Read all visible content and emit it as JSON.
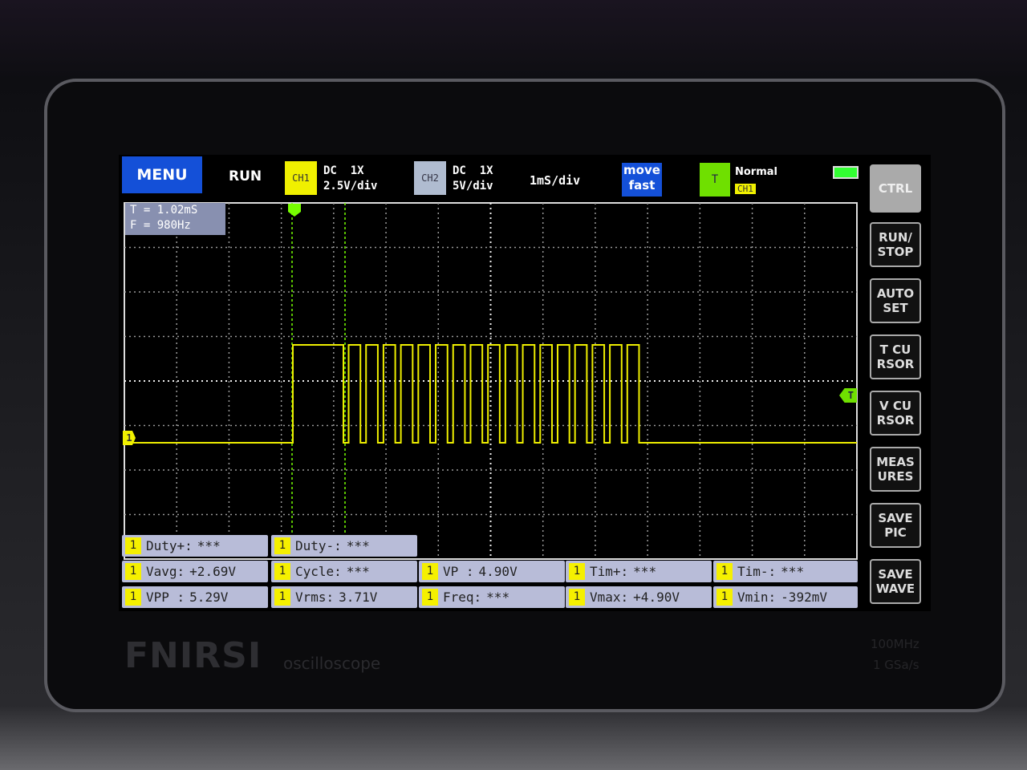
{
  "top_bar": {
    "menu": "MENU",
    "run": "RUN",
    "ch1": {
      "label": "CH1",
      "coupling": "DC  1X",
      "scale": "2.5V/div"
    },
    "ch2": {
      "label": "CH2",
      "coupling": "DC  1X",
      "scale": "5V/div"
    },
    "timebase": "1mS/div",
    "move": [
      "move",
      "fast"
    ],
    "trigger": {
      "icon": "T",
      "mode": "Normal",
      "source": "CH1"
    }
  },
  "cursor_readout": [
    "T = 1.02mS",
    "F = 980Hz"
  ],
  "markers": {
    "ch1": "1",
    "trigger": "T"
  },
  "measurements": [
    [
      {
        "ch": "1",
        "label": "Duty+:",
        "value": "***"
      },
      {
        "ch": "1",
        "label": "Duty-:",
        "value": "***"
      }
    ],
    [
      {
        "ch": "1",
        "label": "Vavg:",
        "value": "+2.69V"
      },
      {
        "ch": "1",
        "label": "Cycle:",
        "value": "***"
      },
      {
        "ch": "1",
        "label": "VP :",
        "value": "4.90V"
      },
      {
        "ch": "1",
        "label": "Tim+:",
        "value": "***"
      },
      {
        "ch": "1",
        "label": "Tim-:",
        "value": "***"
      }
    ],
    [
      {
        "ch": "1",
        "label": "VPP :",
        "value": "5.29V"
      },
      {
        "ch": "1",
        "label": "Vrms:",
        "value": "3.71V"
      },
      {
        "ch": "1",
        "label": "Freq:",
        "value": "***"
      },
      {
        "ch": "1",
        "label": "Vmax:",
        "value": "+4.90V"
      },
      {
        "ch": "1",
        "label": "Vmin:",
        "value": "-392mV"
      }
    ]
  ],
  "side_buttons": [
    [
      "CTRL"
    ],
    [
      "RUN/",
      "STOP"
    ],
    [
      "AUTO",
      "SET"
    ],
    [
      "T CU",
      "RSOR"
    ],
    [
      "V CU",
      "RSOR"
    ],
    [
      "MEAS",
      "URES"
    ],
    [
      "SAVE",
      "PIC"
    ],
    [
      "SAVE",
      "WAVE"
    ]
  ],
  "brand": {
    "name": "FNIRSI",
    "product": "oscilloscope",
    "specs": [
      "100MHz",
      "1 GSa/s"
    ]
  }
}
